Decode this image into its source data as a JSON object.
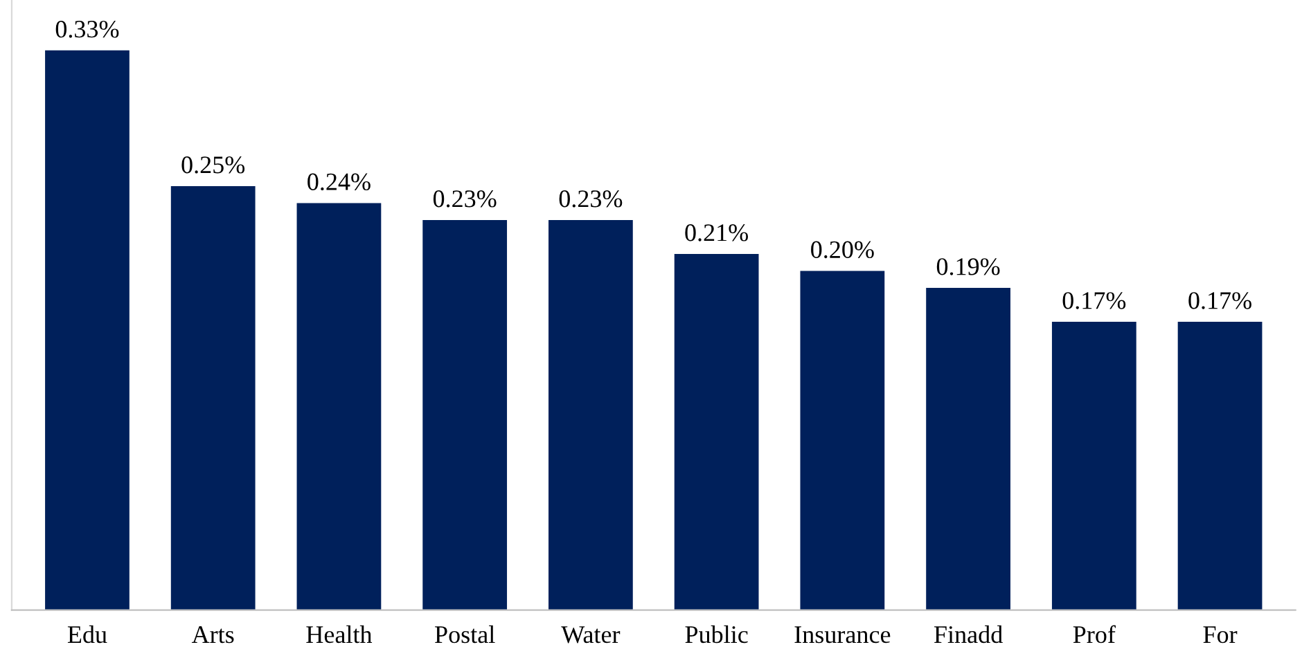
{
  "chart_data": {
    "type": "bar",
    "categories": [
      "Edu",
      "Arts",
      "Health",
      "Postal",
      "Water",
      "Public",
      "Insurance",
      "Finadd",
      "Prof",
      "For"
    ],
    "values": [
      0.33,
      0.25,
      0.24,
      0.23,
      0.23,
      0.21,
      0.2,
      0.19,
      0.17,
      0.17
    ],
    "value_labels": [
      "0.33%",
      "0.25%",
      "0.24%",
      "0.23%",
      "0.23%",
      "0.21%",
      "0.20%",
      "0.19%",
      "0.17%",
      "0.17%"
    ],
    "color": "#00205b",
    "grid": false,
    "legend": false
  }
}
